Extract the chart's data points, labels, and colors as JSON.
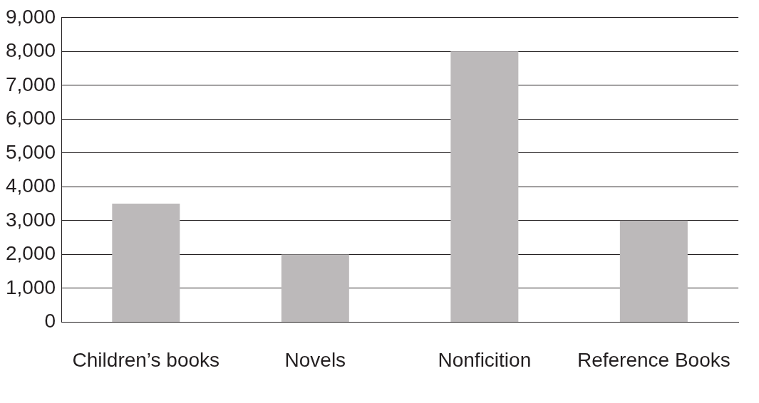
{
  "chart_data": {
    "type": "bar",
    "categories": [
      "Children’s books",
      "Novels",
      "Nonficition",
      "Reference Books"
    ],
    "values": [
      3500,
      2000,
      8000,
      3000
    ],
    "color": "#bcb9ba",
    "ylim": [
      0,
      9000
    ],
    "yticks": [
      {
        "value": 0,
        "label": "0"
      },
      {
        "value": 1000,
        "label": "1,000"
      },
      {
        "value": 2000,
        "label": "2,000"
      },
      {
        "value": 3000,
        "label": "3,000"
      },
      {
        "value": 4000,
        "label": "4,000"
      },
      {
        "value": 5000,
        "label": "5,000"
      },
      {
        "value": 6000,
        "label": "6,000"
      },
      {
        "value": 7000,
        "label": "7,000"
      },
      {
        "value": 8000,
        "label": "8,000"
      },
      {
        "value": 9000,
        "label": "9,000"
      }
    ],
    "grid": "y",
    "legend": false
  }
}
